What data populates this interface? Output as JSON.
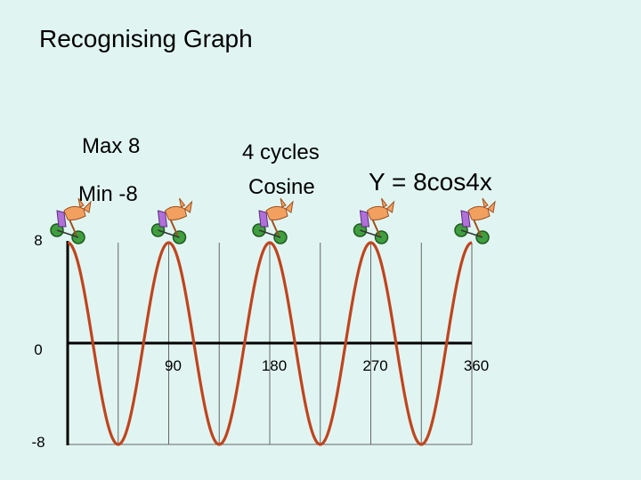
{
  "title": "Recognising Graph",
  "notes": {
    "max": "Max 8",
    "min": "Min -8",
    "cycles": "4 cycles",
    "type": "Cosine",
    "equation": "Y = 8cos4x"
  },
  "colors": {
    "background": "#e0f5f1",
    "curve": "#c0441e",
    "axis": "#000000",
    "grid": "#666666"
  },
  "chart_data": {
    "type": "line",
    "function": "y = 8cos(4x)",
    "amplitude": 8,
    "frequency": 4,
    "xlim": [
      0,
      360
    ],
    "ylim": [
      -8,
      8
    ],
    "x_ticks": [
      {
        "value": 90,
        "label": "90"
      },
      {
        "value": 180,
        "label": "180"
      },
      {
        "value": 270,
        "label": "270"
      },
      {
        "value": 360,
        "label": "360"
      }
    ],
    "y_ticks": [
      {
        "value": 8,
        "label": "8"
      },
      {
        "value": 0,
        "label": "0"
      },
      {
        "value": -8,
        "label": "-8"
      }
    ],
    "x_gridlines": [
      45,
      90,
      135,
      180,
      225,
      270,
      315,
      360
    ],
    "peaks": [
      0,
      90,
      180,
      270,
      360
    ],
    "peak_icon": "cyclist-icon"
  }
}
